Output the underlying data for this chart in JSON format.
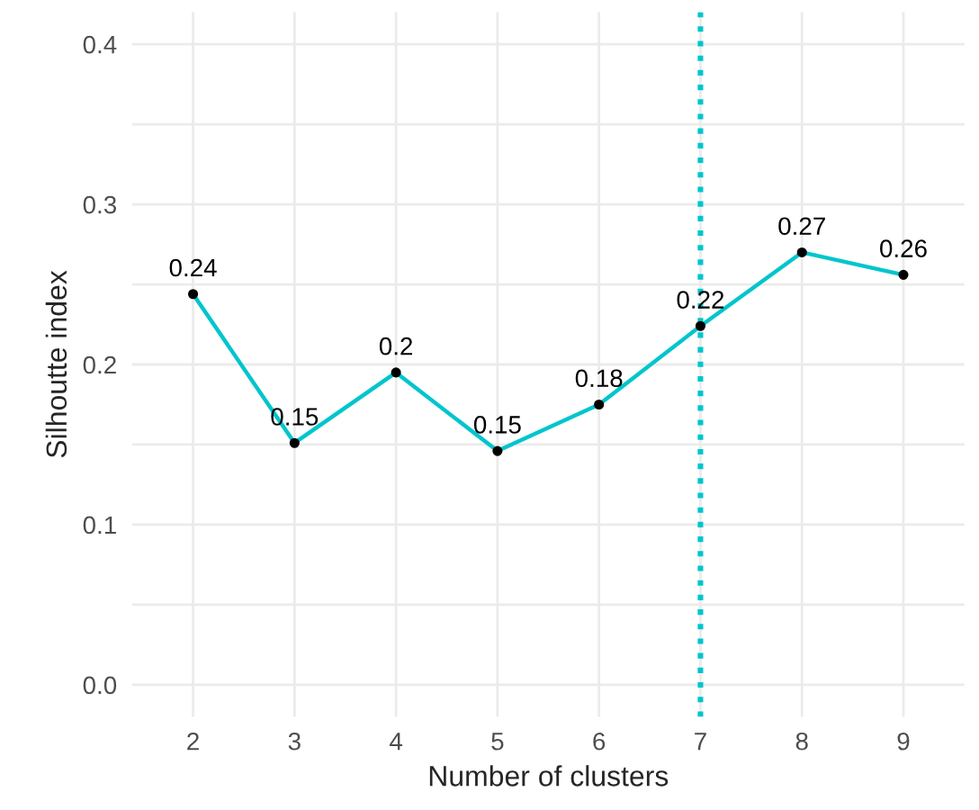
{
  "chart_data": {
    "type": "line",
    "xlabel": "Number of clusters",
    "ylabel": "Silhoutte index",
    "x": [
      2,
      3,
      4,
      5,
      6,
      7,
      8,
      9
    ],
    "series": [
      {
        "color": "#00c5cd",
        "values": [
          0.244,
          0.151,
          0.195,
          0.146,
          0.175,
          0.224,
          0.27,
          0.256
        ],
        "value_labels": [
          "0.24",
          "0.15",
          "0.2",
          "0.15",
          "0.18",
          "0.22",
          "0.27",
          "0.26"
        ]
      }
    ],
    "xlim": [
      1.4,
      9.6
    ],
    "xticks": [
      2,
      3,
      4,
      5,
      6,
      7,
      8,
      9
    ],
    "ylim": [
      -0.02,
      0.42
    ],
    "yticks": [
      {
        "value": 0.0,
        "label": "0.0"
      },
      {
        "value": 0.05,
        "label": null
      },
      0.1,
      {
        "value": 0.15,
        "label": null
      },
      0.2,
      {
        "value": 0.25,
        "label": null
      },
      0.3,
      {
        "value": 0.35,
        "label": null
      },
      0.4
    ],
    "ref_lines": [
      {
        "axis": "x",
        "value": 7,
        "color": "#00c5cd",
        "line_style": "dotted"
      }
    ],
    "grid": true,
    "marker": "circle",
    "line_style": "solid"
  }
}
